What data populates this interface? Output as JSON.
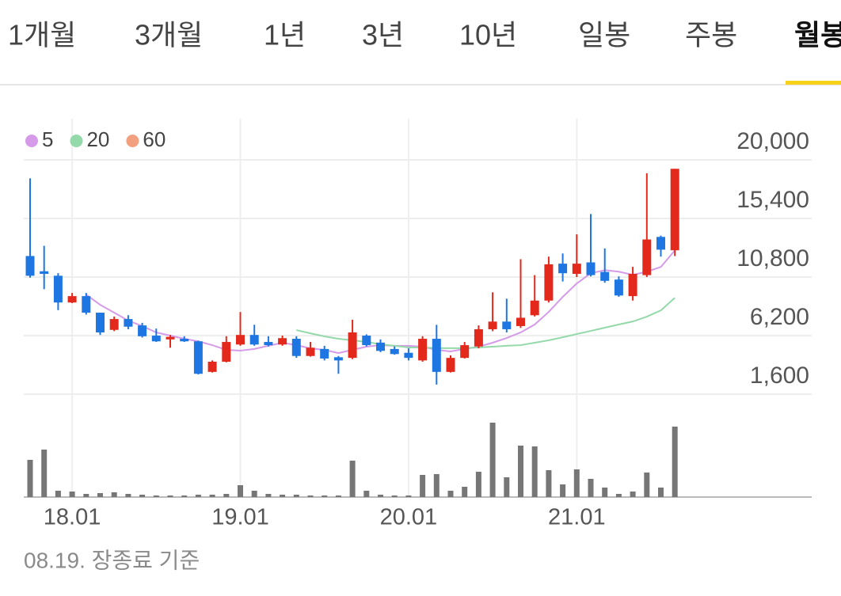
{
  "tabs": [
    {
      "label": "1개월"
    },
    {
      "label": "3개월"
    },
    {
      "label": "1년"
    },
    {
      "label": "3년"
    },
    {
      "label": "10년"
    },
    {
      "label": "일봉"
    },
    {
      "label": "주봉"
    },
    {
      "label": "월봉",
      "selected": true
    }
  ],
  "chart_data": {
    "type": "candlestick",
    "categories": [
      null,
      null,
      null,
      "18.01",
      null,
      null,
      null,
      null,
      null,
      null,
      null,
      null,
      null,
      null,
      null,
      "19.01",
      null,
      null,
      null,
      null,
      null,
      null,
      null,
      null,
      null,
      null,
      null,
      "20.01",
      null,
      null,
      null,
      null,
      null,
      null,
      null,
      null,
      null,
      null,
      null,
      "21.01",
      null,
      null,
      null,
      null,
      null,
      null,
      null
    ],
    "open": [
      12450,
      11250,
      10900,
      8800,
      9300,
      8000,
      6650,
      7500,
      7000,
      6200,
      5900,
      5950,
      5750,
      3350,
      4150,
      5500,
      6250,
      5700,
      5500,
      5950,
      4600,
      5150,
      4500,
      4450,
      6200,
      5650,
      5150,
      4850,
      4250,
      5950,
      3350,
      4450,
      5350,
      6700,
      7300,
      6950,
      7800,
      8950,
      11850,
      11050,
      11950,
      11200,
      10600,
      9300,
      10950,
      13950,
      12900
    ],
    "high": [
      18550,
      13250,
      11100,
      9550,
      9550,
      8000,
      7700,
      7800,
      7200,
      6750,
      6250,
      6150,
      5800,
      4250,
      6150,
      8050,
      7050,
      6150,
      6200,
      6150,
      5700,
      5400,
      4600,
      7450,
      6300,
      5900,
      5350,
      5200,
      6150,
      7050,
      4650,
      5700,
      7000,
      9600,
      9100,
      12200,
      10950,
      12400,
      12650,
      14150,
      15750,
      13050,
      10850,
      11600,
      18950,
      14050,
      19300
    ],
    "low": [
      10750,
      9850,
      8200,
      8750,
      7850,
      6250,
      6550,
      6700,
      6050,
      5700,
      5250,
      5700,
      3150,
      3300,
      4100,
      5400,
      5400,
      5350,
      5400,
      4450,
      4550,
      4250,
      3200,
      4350,
      5350,
      4900,
      4700,
      4250,
      4150,
      2350,
      3300,
      4400,
      5200,
      6550,
      6450,
      6800,
      7700,
      8800,
      10450,
      10800,
      10850,
      10350,
      9250,
      8950,
      10800,
      12400,
      12450
    ],
    "close": [
      10900,
      11050,
      8800,
      9300,
      8000,
      6450,
      7500,
      6900,
      6150,
      5750,
      6100,
      5750,
      3200,
      4150,
      5700,
      6250,
      5500,
      5450,
      6000,
      4600,
      5250,
      4400,
      4250,
      6450,
      5450,
      5000,
      4750,
      4450,
      5950,
      3350,
      4450,
      5450,
      6700,
      7300,
      6700,
      7600,
      8950,
      11800,
      11100,
      11850,
      10950,
      10500,
      9350,
      11050,
      13750,
      12950,
      19300
    ],
    "up_color": "#e3291b",
    "down_color": "#1d76e2",
    "series": [
      {
        "name": "5",
        "color": "#d59be9",
        "values": [
          null,
          null,
          null,
          null,
          9420,
          8620,
          8000,
          7380,
          6950,
          6450,
          6200,
          5950,
          5750,
          5450,
          5080,
          5020,
          5150,
          5400,
          5640,
          5450,
          5200,
          5080,
          4830,
          5080,
          5330,
          5450,
          5400,
          5400,
          5330,
          5080,
          4960,
          5150,
          5330,
          5640,
          6010,
          6450,
          7070,
          8060,
          9240,
          10290,
          11100,
          11340,
          11220,
          10970,
          11220,
          11590,
          12890
        ]
      },
      {
        "name": "20",
        "color": "#93d9a9",
        "values": [
          null,
          null,
          null,
          null,
          null,
          null,
          null,
          null,
          null,
          null,
          null,
          null,
          null,
          null,
          null,
          null,
          null,
          null,
          null,
          6630,
          6380,
          6140,
          5950,
          5830,
          5700,
          5520,
          5400,
          5270,
          5270,
          5210,
          5210,
          5210,
          5270,
          5330,
          5400,
          5450,
          5640,
          5830,
          6070,
          6320,
          6570,
          6820,
          7070,
          7310,
          7690,
          8180,
          9170
        ]
      },
      {
        "name": "60",
        "color": "#f2a07f"
      }
    ],
    "volume": {
      "color": "#767676",
      "values": [
        47,
        60,
        8,
        7,
        4,
        5,
        6,
        4,
        3,
        2,
        2,
        2,
        3,
        3,
        4,
        15,
        8,
        4,
        3,
        3,
        2,
        2,
        2,
        46,
        8,
        3,
        2,
        2,
        28,
        29,
        8,
        13,
        32,
        94,
        25,
        65,
        64,
        34,
        16,
        35,
        23,
        12,
        4,
        7,
        31,
        12,
        89
      ],
      "ylim": [
        0,
        100
      ]
    },
    "ylim": [
      1600,
      20000
    ],
    "yticks": [
      {
        "value": 1600,
        "label": "1,600"
      },
      {
        "value": 6200,
        "label": "6,200"
      },
      {
        "value": 10800,
        "label": "10,800"
      },
      {
        "value": 15400,
        "label": "15,400"
      },
      {
        "value": 20000,
        "label": "20,000"
      }
    ],
    "grid": true
  },
  "footer": "08.19. 장종료 기준"
}
